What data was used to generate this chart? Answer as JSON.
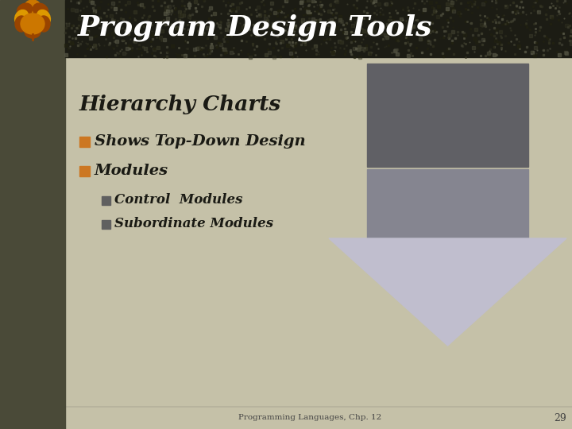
{
  "title": "Program Design Tools",
  "subtitle": "Hierarchy Charts",
  "bullet1": "Shows Top-Down Design",
  "bullet2": "Modules",
  "sub_bullet1": "Control  Modules",
  "sub_bullet2": "Subordinate Modules",
  "footer": "Programming Languages, Chp. 12",
  "page_num": "29",
  "bg_color": "#c5c1a8",
  "left_bar_color": "#4a4a38",
  "header_bg": "#1c1c14",
  "title_color": "#ffffff",
  "subtitle_color": "#1a1a14",
  "bullet_color": "#1a1a14",
  "bullet_marker_color": "#cc7722",
  "sub_bullet_marker_color": "#606060",
  "arrow_top_color": "#606065",
  "arrow_mid_color": "#858590",
  "arrow_bot_color": "#c0bece",
  "footer_color": "#444444",
  "leaf_color1": "#cc7700",
  "leaf_color2": "#994400",
  "leaf_color3": "#dd9900"
}
